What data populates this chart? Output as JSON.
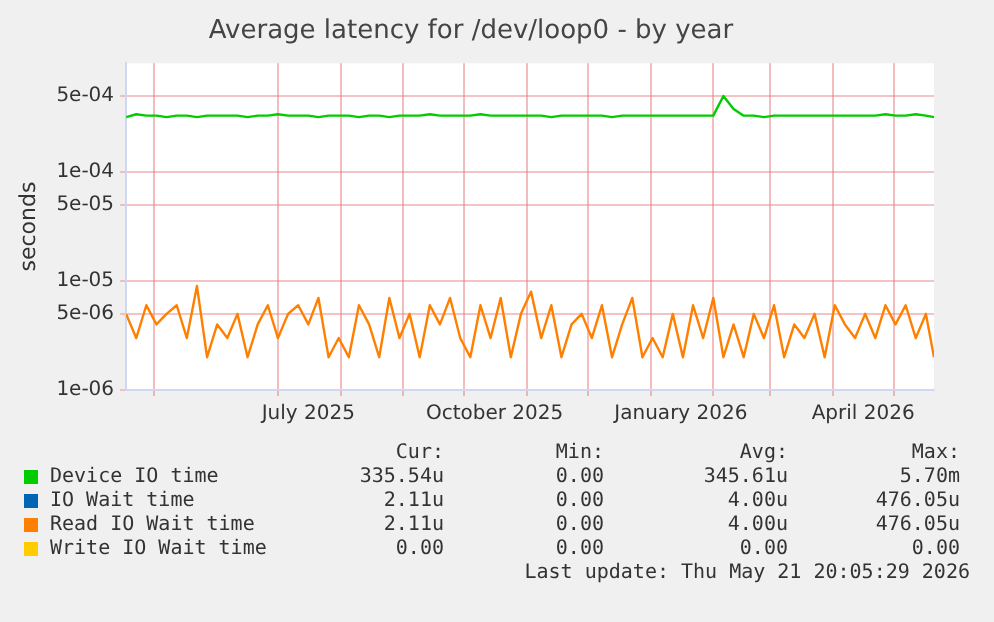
{
  "chart_data": {
    "type": "line",
    "title": "Average latency for /dev/loop0 - by year",
    "ylabel": "seconds",
    "log": "y",
    "grid": true,
    "legend": "bottom",
    "marker": "none",
    "line_style": "solid",
    "xlim": [
      "2025-04-17",
      "2026-05-21"
    ],
    "xticks": [
      {
        "value": "2025-05-01",
        "label": null
      },
      {
        "value": "2025-07-01",
        "label": null
      },
      {
        "value": "2025-07-16",
        "label": "July 2025"
      },
      {
        "value": "2025-08-01",
        "label": null
      },
      {
        "value": "2025-09-01",
        "label": null
      },
      {
        "value": "2025-10-01",
        "label": null
      },
      {
        "value": "2025-10-16",
        "label": "October 2025"
      },
      {
        "value": "2025-11-01",
        "label": null
      },
      {
        "value": "2025-12-01",
        "label": null
      },
      {
        "value": "2026-01-01",
        "label": null
      },
      {
        "value": "2026-01-16",
        "label": "January 2026"
      },
      {
        "value": "2026-02-01",
        "label": null
      },
      {
        "value": "2026-03-01",
        "label": null
      },
      {
        "value": "2026-04-01",
        "label": null
      },
      {
        "value": "2026-04-16",
        "label": "April 2026"
      },
      {
        "value": "2026-05-01",
        "label": null
      }
    ],
    "ylim": [
      1e-06,
      0.001
    ],
    "yticks": [
      {
        "value": 1e-06,
        "label": "1e-06"
      },
      {
        "value": 5e-06,
        "label": "5e-06"
      },
      {
        "value": 1e-05,
        "label": "1e-05"
      },
      {
        "value": 5e-05,
        "label": "5e-05"
      },
      {
        "value": 0.0001,
        "label": "1e-04"
      },
      {
        "value": 0.0005,
        "label": "5e-04"
      }
    ],
    "x": [
      "2025-04-17",
      "2025-04-22",
      "2025-04-27",
      "2025-05-02",
      "2025-05-07",
      "2025-05-12",
      "2025-05-17",
      "2025-05-22",
      "2025-05-27",
      "2025-06-01",
      "2025-06-06",
      "2025-06-11",
      "2025-06-16",
      "2025-06-21",
      "2025-06-26",
      "2025-07-01",
      "2025-07-06",
      "2025-07-11",
      "2025-07-16",
      "2025-07-21",
      "2025-07-26",
      "2025-07-31",
      "2025-08-05",
      "2025-08-10",
      "2025-08-15",
      "2025-08-20",
      "2025-08-25",
      "2025-08-30",
      "2025-09-04",
      "2025-09-09",
      "2025-09-14",
      "2025-09-19",
      "2025-09-24",
      "2025-09-29",
      "2025-10-04",
      "2025-10-09",
      "2025-10-14",
      "2025-10-19",
      "2025-10-24",
      "2025-10-29",
      "2025-11-03",
      "2025-11-08",
      "2025-11-13",
      "2025-11-18",
      "2025-11-23",
      "2025-11-28",
      "2025-12-03",
      "2025-12-08",
      "2025-12-13",
      "2025-12-18",
      "2025-12-23",
      "2025-12-28",
      "2026-01-02",
      "2026-01-07",
      "2026-01-12",
      "2026-01-17",
      "2026-01-22",
      "2026-01-27",
      "2026-02-01",
      "2026-02-06",
      "2026-02-11",
      "2026-02-16",
      "2026-02-21",
      "2026-02-26",
      "2026-03-03",
      "2026-03-08",
      "2026-03-13",
      "2026-03-18",
      "2026-03-23",
      "2026-03-28",
      "2026-04-02",
      "2026-04-07",
      "2026-04-12",
      "2026-04-17",
      "2026-04-22",
      "2026-04-27",
      "2026-05-02",
      "2026-05-07",
      "2026-05-12",
      "2026-05-17",
      "2026-05-21"
    ],
    "series": [
      {
        "name": "Device IO time",
        "color": "#00cc00",
        "values": [
          0.00032,
          0.00034,
          0.00033,
          0.00033,
          0.00032,
          0.00033,
          0.00033,
          0.00032,
          0.00033,
          0.00033,
          0.00033,
          0.00033,
          0.00032,
          0.00033,
          0.00033,
          0.00034,
          0.00033,
          0.00033,
          0.00033,
          0.00032,
          0.00033,
          0.00033,
          0.00033,
          0.00032,
          0.00033,
          0.00033,
          0.00032,
          0.00033,
          0.00033,
          0.00033,
          0.00034,
          0.00033,
          0.00033,
          0.00033,
          0.00033,
          0.00034,
          0.00033,
          0.00033,
          0.00033,
          0.00033,
          0.00033,
          0.00033,
          0.00032,
          0.00033,
          0.00033,
          0.00033,
          0.00033,
          0.00033,
          0.00032,
          0.00033,
          0.00033,
          0.00033,
          0.00033,
          0.00033,
          0.00033,
          0.00033,
          0.00033,
          0.00033,
          0.00033,
          0.0005,
          0.00038,
          0.00033,
          0.00033,
          0.00032,
          0.00033,
          0.00033,
          0.00033,
          0.00033,
          0.00033,
          0.00033,
          0.00033,
          0.00033,
          0.00033,
          0.00033,
          0.00033,
          0.00034,
          0.00033,
          0.00033,
          0.00034,
          0.00033,
          0.00032
        ]
      },
      {
        "name": "IO Wait time",
        "color": "#0066b3",
        "values": [
          null,
          null,
          null,
          null,
          null,
          null,
          null,
          null,
          null,
          null,
          null,
          null,
          null,
          null,
          null,
          null,
          null,
          null,
          null,
          null,
          null,
          null,
          null,
          null,
          null,
          null,
          null,
          null,
          null,
          null,
          null,
          null,
          null,
          null,
          null,
          null,
          null,
          null,
          null,
          null,
          null,
          null,
          null,
          null,
          null,
          null,
          null,
          null,
          null,
          null,
          null,
          null,
          null,
          null,
          null,
          null,
          null,
          null,
          null,
          null,
          null,
          null,
          null,
          null,
          null,
          null,
          null,
          null,
          null,
          null,
          null,
          null,
          null,
          null,
          null,
          null,
          null,
          null,
          null,
          null,
          null
        ]
      },
      {
        "name": "Read IO Wait time",
        "color": "#ff8000",
        "values": [
          5e-06,
          3e-06,
          6e-06,
          4e-06,
          5e-06,
          6e-06,
          3e-06,
          9e-06,
          2e-06,
          4e-06,
          3e-06,
          5e-06,
          2e-06,
          4e-06,
          6e-06,
          3e-06,
          5e-06,
          6e-06,
          4e-06,
          7e-06,
          2e-06,
          3e-06,
          2e-06,
          6e-06,
          4e-06,
          2e-06,
          7e-06,
          3e-06,
          5e-06,
          2e-06,
          6e-06,
          4e-06,
          7e-06,
          3e-06,
          2e-06,
          6e-06,
          3e-06,
          7e-06,
          2e-06,
          5e-06,
          8e-06,
          3e-06,
          6e-06,
          2e-06,
          4e-06,
          5e-06,
          3e-06,
          6e-06,
          2e-06,
          4e-06,
          7e-06,
          2e-06,
          3e-06,
          2e-06,
          5e-06,
          2e-06,
          6e-06,
          3e-06,
          7e-06,
          2e-06,
          4e-06,
          2e-06,
          5e-06,
          3e-06,
          6e-06,
          2e-06,
          4e-06,
          3e-06,
          5e-06,
          2e-06,
          6e-06,
          4e-06,
          3e-06,
          5e-06,
          3e-06,
          6e-06,
          4e-06,
          6e-06,
          3e-06,
          5e-06,
          2e-06
        ]
      },
      {
        "name": "Write IO Wait time",
        "color": "#ffcc00",
        "values": [
          null,
          null,
          null,
          null,
          null,
          null,
          null,
          null,
          null,
          null,
          null,
          null,
          null,
          null,
          null,
          null,
          null,
          null,
          null,
          null,
          null,
          null,
          null,
          null,
          null,
          null,
          null,
          null,
          null,
          null,
          null,
          null,
          null,
          null,
          null,
          null,
          null,
          null,
          null,
          null,
          null,
          null,
          null,
          null,
          null,
          null,
          null,
          null,
          null,
          null,
          null,
          null,
          null,
          null,
          null,
          null,
          null,
          null,
          null,
          null,
          null,
          null,
          null,
          null,
          null,
          null,
          null,
          null,
          null,
          null,
          null,
          null,
          null,
          null,
          null,
          null,
          null,
          null,
          null,
          null,
          null
        ]
      }
    ],
    "annotations": [
      "Cur:",
      "Min:",
      "Avg:",
      "Max:",
      "335.54u",
      "0.00",
      "345.61u",
      "5.70m",
      "2.11u",
      "0.00",
      "4.00u",
      "476.05u",
      "2.11u",
      "0.00",
      "4.00u",
      "476.05u",
      "0.00",
      "0.00",
      "0.00",
      "0.00",
      "Last update: Thu May 21 20:05:29 2026"
    ]
  }
}
